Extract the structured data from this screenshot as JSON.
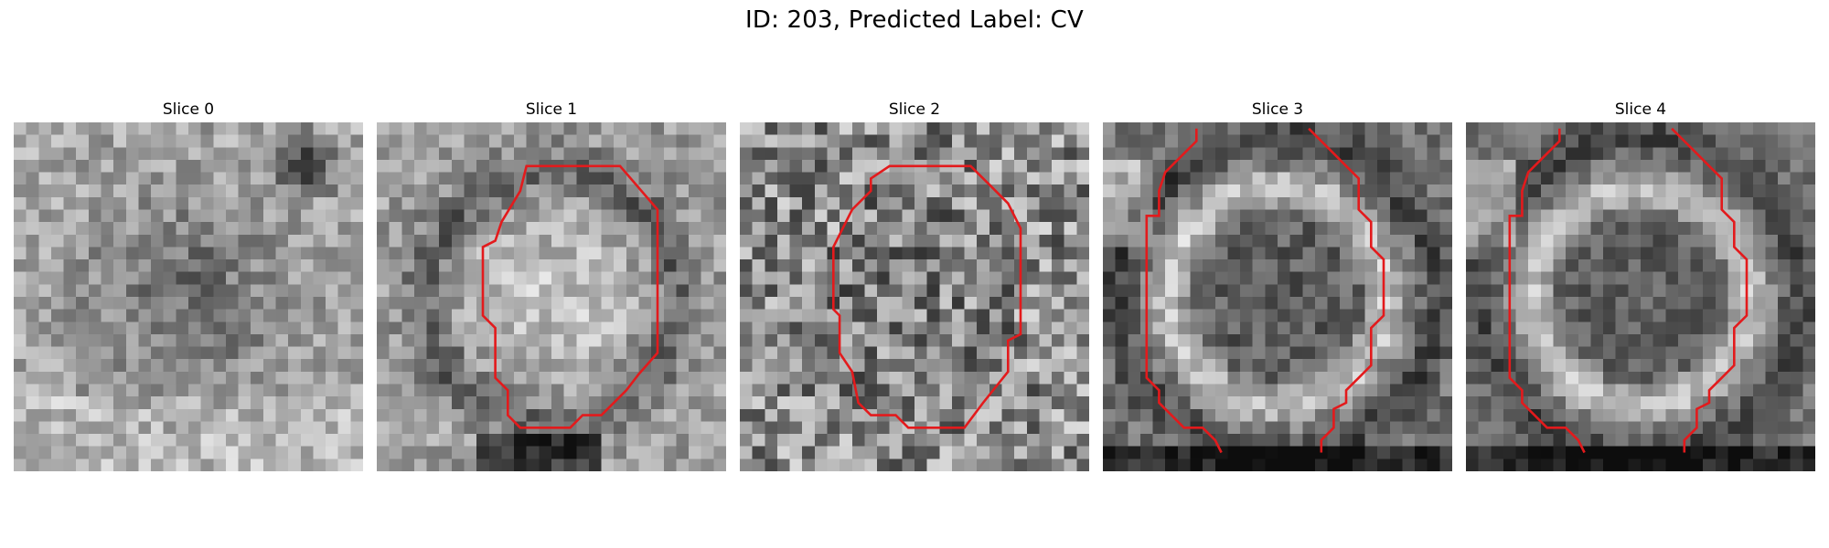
{
  "figure": {
    "title": "ID: 203, Predicted Label: CV"
  },
  "colors": {
    "contour": "#e31a1c",
    "background": "#ffffff",
    "text": "#000000"
  },
  "slices": [
    {
      "label": "Slice 0",
      "has_contour": false
    },
    {
      "label": "Slice 1",
      "has_contour": true
    },
    {
      "label": "Slice 2",
      "has_contour": true
    },
    {
      "label": "Slice 3",
      "has_contour": true
    },
    {
      "label": "Slice 4",
      "has_contour": true
    }
  ]
}
